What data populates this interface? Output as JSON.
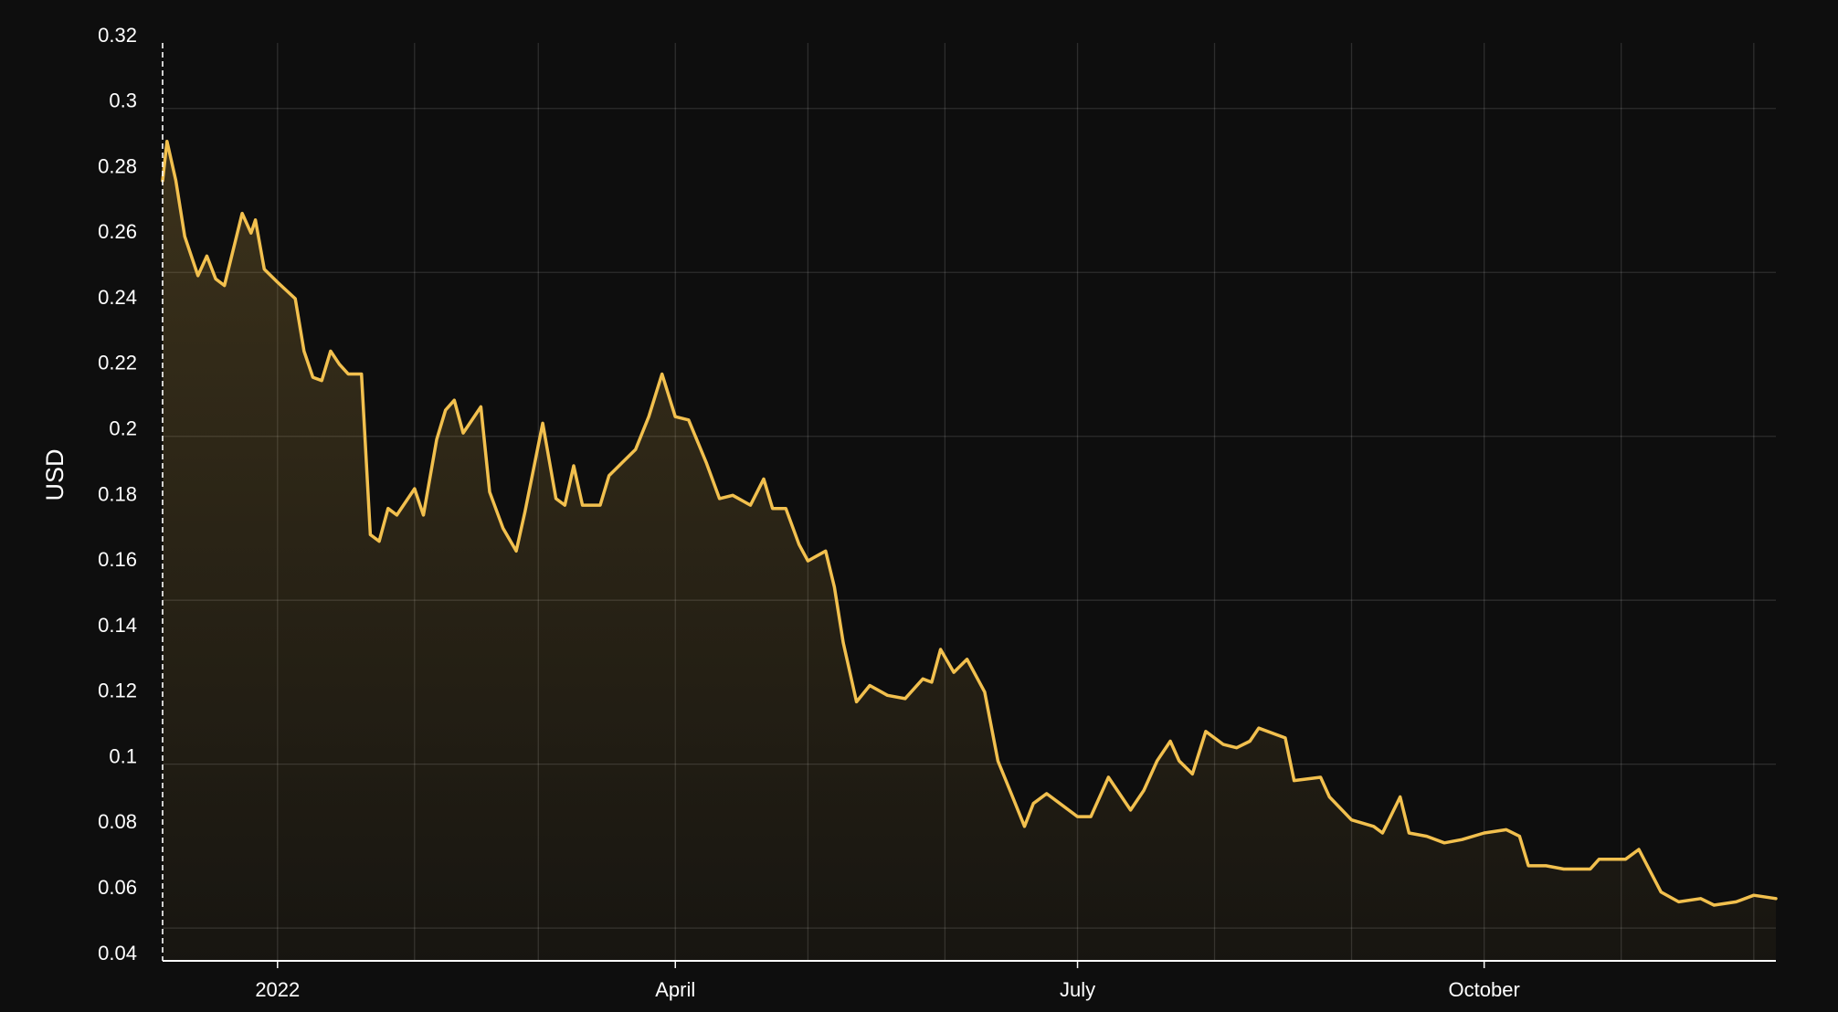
{
  "chart_data": {
    "type": "area-line",
    "ylabel": "USD",
    "color": "#f2c04e",
    "x": [
      "2021-12-06",
      "2021-12-07",
      "2021-12-09",
      "2021-12-11",
      "2021-12-14",
      "2021-12-16",
      "2021-12-18",
      "2021-12-20",
      "2021-12-22",
      "2021-12-24",
      "2021-12-26",
      "2021-12-27",
      "2021-12-29",
      "2022-01-01",
      "2022-01-05",
      "2022-01-07",
      "2022-01-09",
      "2022-01-11",
      "2022-01-13",
      "2022-01-15",
      "2022-01-17",
      "2022-01-20",
      "2022-01-22",
      "2022-01-24",
      "2022-01-26",
      "2022-01-28",
      "2022-01-30",
      "2022-02-01",
      "2022-02-03",
      "2022-02-06",
      "2022-02-08",
      "2022-02-10",
      "2022-02-12",
      "2022-02-16",
      "2022-02-18",
      "2022-02-21",
      "2022-02-24",
      "2022-02-26",
      "2022-03-02",
      "2022-03-05",
      "2022-03-07",
      "2022-03-09",
      "2022-03-11",
      "2022-03-15",
      "2022-03-17",
      "2022-03-20",
      "2022-03-23",
      "2022-03-26",
      "2022-03-29",
      "2022-04-01",
      "2022-04-04",
      "2022-04-08",
      "2022-04-11",
      "2022-04-14",
      "2022-04-18",
      "2022-04-21",
      "2022-04-23",
      "2022-04-26",
      "2022-04-29",
      "2022-05-01",
      "2022-05-05",
      "2022-05-07",
      "2022-05-09",
      "2022-05-12",
      "2022-05-15",
      "2022-05-19",
      "2022-05-23",
      "2022-05-27",
      "2022-05-29",
      "2022-05-31",
      "2022-06-03",
      "2022-06-06",
      "2022-06-10",
      "2022-06-13",
      "2022-06-16",
      "2022-06-19",
      "2022-06-21",
      "2022-06-24",
      "2022-06-27",
      "2022-07-01",
      "2022-07-04",
      "2022-07-08",
      "2022-07-13",
      "2022-07-16",
      "2022-07-19",
      "2022-07-22",
      "2022-07-24",
      "2022-07-27",
      "2022-07-30",
      "2022-08-03",
      "2022-08-06",
      "2022-08-09",
      "2022-08-11",
      "2022-08-17",
      "2022-08-19",
      "2022-08-25",
      "2022-08-27",
      "2022-09-01",
      "2022-09-06",
      "2022-09-08",
      "2022-09-12",
      "2022-09-14",
      "2022-09-18",
      "2022-09-22",
      "2022-09-26",
      "2022-10-01",
      "2022-10-06",
      "2022-10-09",
      "2022-10-11",
      "2022-10-15",
      "2022-10-19",
      "2022-10-25",
      "2022-10-27",
      "2022-11-02",
      "2022-11-05",
      "2022-11-10",
      "2022-11-14",
      "2022-11-19",
      "2022-11-22",
      "2022-11-27",
      "2022-12-01",
      "2022-12-06"
    ],
    "values": [
      0.278,
      0.29,
      0.278,
      0.261,
      0.249,
      0.255,
      0.248,
      0.246,
      0.257,
      0.268,
      0.262,
      0.266,
      0.251,
      0.247,
      0.242,
      0.226,
      0.218,
      0.217,
      0.226,
      0.222,
      0.219,
      0.219,
      0.17,
      0.168,
      0.178,
      0.176,
      0.18,
      0.184,
      0.176,
      0.199,
      0.208,
      0.211,
      0.201,
      0.209,
      0.183,
      0.172,
      0.165,
      0.177,
      0.204,
      0.181,
      0.179,
      0.191,
      0.179,
      0.179,
      0.188,
      0.192,
      0.196,
      0.206,
      0.219,
      0.206,
      0.205,
      0.192,
      0.181,
      0.182,
      0.179,
      0.187,
      0.178,
      0.178,
      0.167,
      0.162,
      0.165,
      0.154,
      0.137,
      0.119,
      0.124,
      0.121,
      0.12,
      0.126,
      0.125,
      0.135,
      0.128,
      0.132,
      0.122,
      0.101,
      0.091,
      0.081,
      0.088,
      0.091,
      0.088,
      0.084,
      0.084,
      0.096,
      0.086,
      0.092,
      0.101,
      0.107,
      0.101,
      0.097,
      0.11,
      0.106,
      0.105,
      0.107,
      0.111,
      0.108,
      0.095,
      0.096,
      0.09,
      0.083,
      0.081,
      0.079,
      0.09,
      0.079,
      0.078,
      0.076,
      0.077,
      0.079,
      0.08,
      0.078,
      0.069,
      0.069,
      0.068,
      0.068,
      0.071,
      0.071,
      0.074,
      0.061,
      0.058,
      0.059,
      0.057,
      0.058,
      0.06,
      0.059
    ],
    "xlim": [
      "2021-12-06",
      "2022-12-06"
    ],
    "xticks": [
      {
        "value": "2022-01-01",
        "label": "2022"
      },
      {
        "value": "2022-04-01",
        "label": "April"
      },
      {
        "value": "2022-07-01",
        "label": "July"
      },
      {
        "value": "2022-10-01",
        "label": "October"
      }
    ],
    "xgrid": [
      "2022-01-01",
      "2022-02-01",
      "2022-03-01",
      "2022-04-01",
      "2022-05-01",
      "2022-06-01",
      "2022-07-01",
      "2022-08-01",
      "2022-09-01",
      "2022-10-01",
      "2022-11-01",
      "2022-12-01"
    ],
    "ylim": [
      0.04,
      0.32
    ],
    "yticks": [
      0.04,
      0.06,
      0.08,
      0.1,
      0.12,
      0.14,
      0.16,
      0.18,
      0.2,
      0.22,
      0.24,
      0.26,
      0.28,
      0.3,
      0.32
    ],
    "ygrid": [
      0.05,
      0.1,
      0.15,
      0.2,
      0.25,
      0.3
    ],
    "grid": true
  }
}
